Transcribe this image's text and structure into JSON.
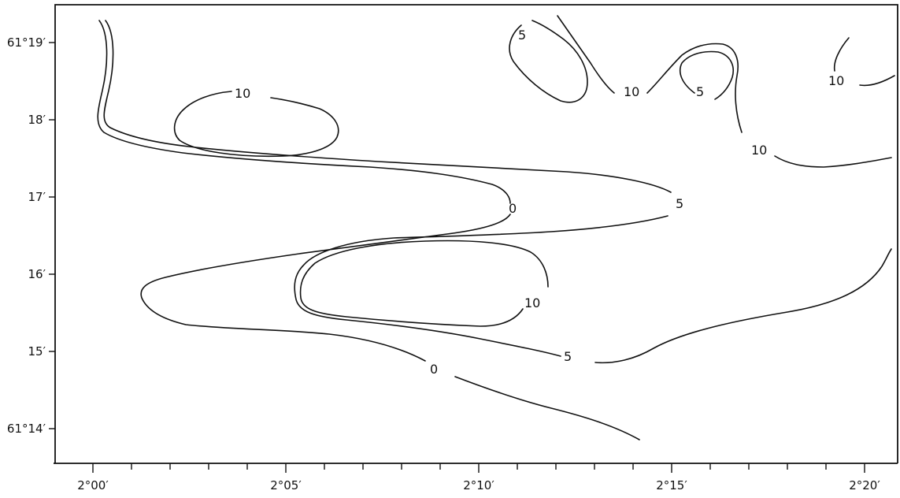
{
  "chart": {
    "y_ticks": [
      {
        "id": "y1919",
        "label": "61°19′"
      },
      {
        "id": "y18",
        "label": "18′"
      },
      {
        "id": "y17",
        "label": "17′"
      },
      {
        "id": "y16",
        "label": "16′"
      },
      {
        "id": "y15",
        "label": "15′"
      },
      {
        "id": "y14",
        "label": "61°14′"
      }
    ],
    "x_ticks": [
      {
        "id": "x200",
        "label": "2°00′"
      },
      {
        "id": "x205",
        "label": "2°05′"
      },
      {
        "id": "x210",
        "label": "2°10′"
      },
      {
        "id": "x215",
        "label": "2°15′"
      },
      {
        "id": "x220",
        "label": "2°20′"
      }
    ],
    "contour_labels": [
      {
        "id": "a",
        "text": "10"
      },
      {
        "id": "b",
        "text": "5"
      },
      {
        "id": "c",
        "text": "10"
      },
      {
        "id": "d",
        "text": "5"
      },
      {
        "id": "e",
        "text": "10"
      },
      {
        "id": "f",
        "text": "10"
      },
      {
        "id": "g",
        "text": "0"
      },
      {
        "id": "h",
        "text": "5"
      },
      {
        "id": "i",
        "text": "10"
      },
      {
        "id": "j",
        "text": "5"
      },
      {
        "id": "k",
        "text": "0"
      }
    ]
  }
}
